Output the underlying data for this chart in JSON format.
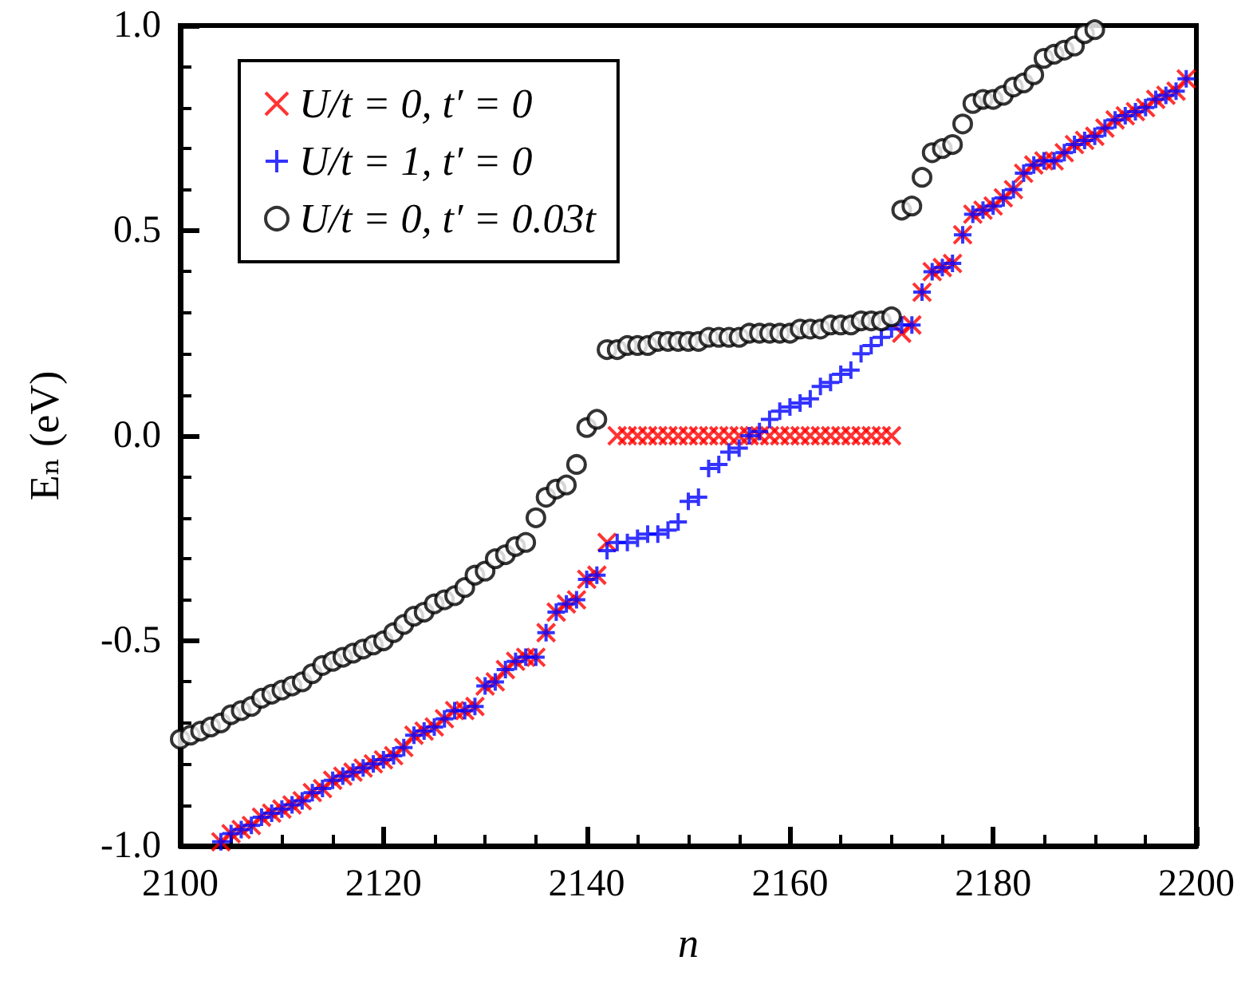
{
  "chart_data": {
    "type": "scatter",
    "xlabel": "n",
    "ylabel": "Eₙ (eV)",
    "xlim": [
      2100,
      2200
    ],
    "xticks": [
      2100,
      2120,
      2140,
      2160,
      2180,
      2200
    ],
    "ylim": [
      -1.0,
      1.0
    ],
    "yticks": [
      {
        "value": -1.0,
        "label": "-1.0"
      },
      {
        "value": -0.5,
        "label": "-0.5"
      },
      {
        "value": 0,
        "label": "0.0"
      },
      {
        "value": 0.5,
        "label": "0.5"
      },
      {
        "value": 1.0,
        "label": "1.0"
      }
    ],
    "grid": false,
    "legend": "top left",
    "series": [
      {
        "name": "U/t = 0, t′ = 0",
        "color": "#ff0000",
        "marker": "cross",
        "x": [
          2104,
          2105,
          2106,
          2107,
          2108,
          2109,
          2110,
          2111,
          2112,
          2113,
          2114,
          2115,
          2116,
          2117,
          2118,
          2119,
          2120,
          2121,
          2122,
          2123,
          2124,
          2125,
          2126,
          2127,
          2128,
          2129,
          2130,
          2131,
          2132,
          2133,
          2134,
          2135,
          2136,
          2137,
          2138,
          2139,
          2140,
          2141,
          2142,
          2143,
          2144,
          2145,
          2146,
          2147,
          2148,
          2149,
          2150,
          2151,
          2152,
          2153,
          2154,
          2155,
          2156,
          2157,
          2158,
          2159,
          2160,
          2161,
          2162,
          2163,
          2164,
          2165,
          2166,
          2167,
          2168,
          2169,
          2170,
          2171,
          2172,
          2173,
          2174,
          2175,
          2176,
          2177,
          2178,
          2179,
          2180,
          2181,
          2182,
          2183,
          2184,
          2185,
          2186,
          2187,
          2188,
          2189,
          2190,
          2191,
          2192,
          2193,
          2194,
          2195,
          2196,
          2197,
          2198,
          2199
        ],
        "values": [
          -0.99,
          -0.97,
          -0.96,
          -0.95,
          -0.93,
          -0.92,
          -0.91,
          -0.9,
          -0.89,
          -0.87,
          -0.86,
          -0.84,
          -0.83,
          -0.82,
          -0.81,
          -0.8,
          -0.79,
          -0.78,
          -0.76,
          -0.73,
          -0.72,
          -0.71,
          -0.69,
          -0.67,
          -0.67,
          -0.66,
          -0.61,
          -0.6,
          -0.57,
          -0.55,
          -0.54,
          -0.54,
          -0.48,
          -0.43,
          -0.41,
          -0.4,
          -0.35,
          -0.34,
          -0.26,
          0,
          0,
          0,
          0,
          0,
          0,
          0,
          0,
          0,
          0,
          0,
          0,
          0,
          0,
          0,
          0,
          0,
          0,
          0,
          0,
          0,
          0,
          0,
          0,
          0,
          0,
          0,
          0,
          0.25,
          0.27,
          0.35,
          0.4,
          0.41,
          0.42,
          0.49,
          0.54,
          0.55,
          0.56,
          0.58,
          0.6,
          0.64,
          0.66,
          0.67,
          0.67,
          0.69,
          0.71,
          0.72,
          0.73,
          0.75,
          0.77,
          0.78,
          0.79,
          0.8,
          0.82,
          0.83,
          0.84,
          0.87
        ]
      },
      {
        "name": "U/t = 1, t′ = 0",
        "color": "#0000ff",
        "marker": "plus",
        "x": [
          2104,
          2105,
          2106,
          2107,
          2108,
          2109,
          2110,
          2111,
          2112,
          2113,
          2114,
          2115,
          2116,
          2117,
          2118,
          2119,
          2120,
          2121,
          2122,
          2123,
          2124,
          2125,
          2126,
          2127,
          2128,
          2129,
          2130,
          2131,
          2132,
          2133,
          2134,
          2135,
          2136,
          2137,
          2138,
          2139,
          2140,
          2141,
          2142,
          2143,
          2144,
          2145,
          2146,
          2147,
          2148,
          2149,
          2150,
          2151,
          2152,
          2153,
          2154,
          2155,
          2156,
          2157,
          2158,
          2159,
          2160,
          2161,
          2162,
          2163,
          2164,
          2165,
          2166,
          2167,
          2168,
          2169,
          2170,
          2171,
          2172,
          2173,
          2174,
          2175,
          2176,
          2177,
          2178,
          2179,
          2180,
          2181,
          2182,
          2183,
          2184,
          2185,
          2186,
          2187,
          2188,
          2189,
          2190,
          2191,
          2192,
          2193,
          2194,
          2195,
          2196,
          2197,
          2198,
          2199
        ],
        "values": [
          -0.99,
          -0.97,
          -0.96,
          -0.95,
          -0.93,
          -0.92,
          -0.91,
          -0.9,
          -0.89,
          -0.87,
          -0.86,
          -0.84,
          -0.83,
          -0.82,
          -0.81,
          -0.8,
          -0.79,
          -0.78,
          -0.76,
          -0.73,
          -0.72,
          -0.71,
          -0.69,
          -0.67,
          -0.67,
          -0.66,
          -0.61,
          -0.6,
          -0.57,
          -0.55,
          -0.54,
          -0.54,
          -0.48,
          -0.43,
          -0.41,
          -0.4,
          -0.35,
          -0.34,
          -0.28,
          -0.26,
          -0.26,
          -0.25,
          -0.24,
          -0.24,
          -0.23,
          -0.21,
          -0.16,
          -0.15,
          -0.08,
          -0.07,
          -0.04,
          -0.03,
          0,
          0.01,
          0.04,
          0.06,
          0.07,
          0.08,
          0.09,
          0.12,
          0.13,
          0.15,
          0.16,
          0.2,
          0.22,
          0.24,
          0.26,
          0.27,
          0.27,
          0.35,
          0.4,
          0.41,
          0.42,
          0.49,
          0.54,
          0.55,
          0.56,
          0.58,
          0.6,
          0.64,
          0.66,
          0.67,
          0.67,
          0.69,
          0.71,
          0.72,
          0.73,
          0.75,
          0.77,
          0.78,
          0.79,
          0.8,
          0.82,
          0.83,
          0.84,
          0.87
        ]
      },
      {
        "name": "U/t = 0, t′ = 0.03t",
        "color": "#000000",
        "marker": "circle",
        "x": [
          2100,
          2101,
          2102,
          2103,
          2104,
          2105,
          2106,
          2107,
          2108,
          2109,
          2110,
          2111,
          2112,
          2113,
          2114,
          2115,
          2116,
          2117,
          2118,
          2119,
          2120,
          2121,
          2122,
          2123,
          2124,
          2125,
          2126,
          2127,
          2128,
          2129,
          2130,
          2131,
          2132,
          2133,
          2134,
          2135,
          2136,
          2137,
          2138,
          2139,
          2140,
          2141,
          2142,
          2143,
          2144,
          2145,
          2146,
          2147,
          2148,
          2149,
          2150,
          2151,
          2152,
          2153,
          2154,
          2155,
          2156,
          2157,
          2158,
          2159,
          2160,
          2161,
          2162,
          2163,
          2164,
          2165,
          2166,
          2167,
          2168,
          2169,
          2170,
          2171,
          2172,
          2173,
          2174,
          2175,
          2176,
          2177,
          2178,
          2179,
          2180,
          2181,
          2182,
          2183,
          2184,
          2185,
          2186,
          2187,
          2188,
          2189,
          2190
        ],
        "values": [
          -0.74,
          -0.73,
          -0.72,
          -0.71,
          -0.7,
          -0.68,
          -0.67,
          -0.66,
          -0.64,
          -0.63,
          -0.62,
          -0.61,
          -0.6,
          -0.58,
          -0.56,
          -0.55,
          -0.54,
          -0.53,
          -0.52,
          -0.51,
          -0.5,
          -0.48,
          -0.46,
          -0.44,
          -0.43,
          -0.41,
          -0.4,
          -0.39,
          -0.37,
          -0.34,
          -0.33,
          -0.3,
          -0.29,
          -0.27,
          -0.26,
          -0.2,
          -0.15,
          -0.13,
          -0.12,
          -0.07,
          0.02,
          0.04,
          0.21,
          0.21,
          0.22,
          0.22,
          0.22,
          0.23,
          0.23,
          0.23,
          0.23,
          0.23,
          0.24,
          0.24,
          0.24,
          0.24,
          0.25,
          0.25,
          0.25,
          0.25,
          0.25,
          0.26,
          0.26,
          0.26,
          0.27,
          0.27,
          0.27,
          0.28,
          0.28,
          0.28,
          0.29,
          0.55,
          0.56,
          0.63,
          0.69,
          0.7,
          0.71,
          0.76,
          0.81,
          0.82,
          0.82,
          0.83,
          0.85,
          0.86,
          0.88,
          0.92,
          0.93,
          0.94,
          0.95,
          0.98,
          0.99
        ]
      }
    ]
  }
}
